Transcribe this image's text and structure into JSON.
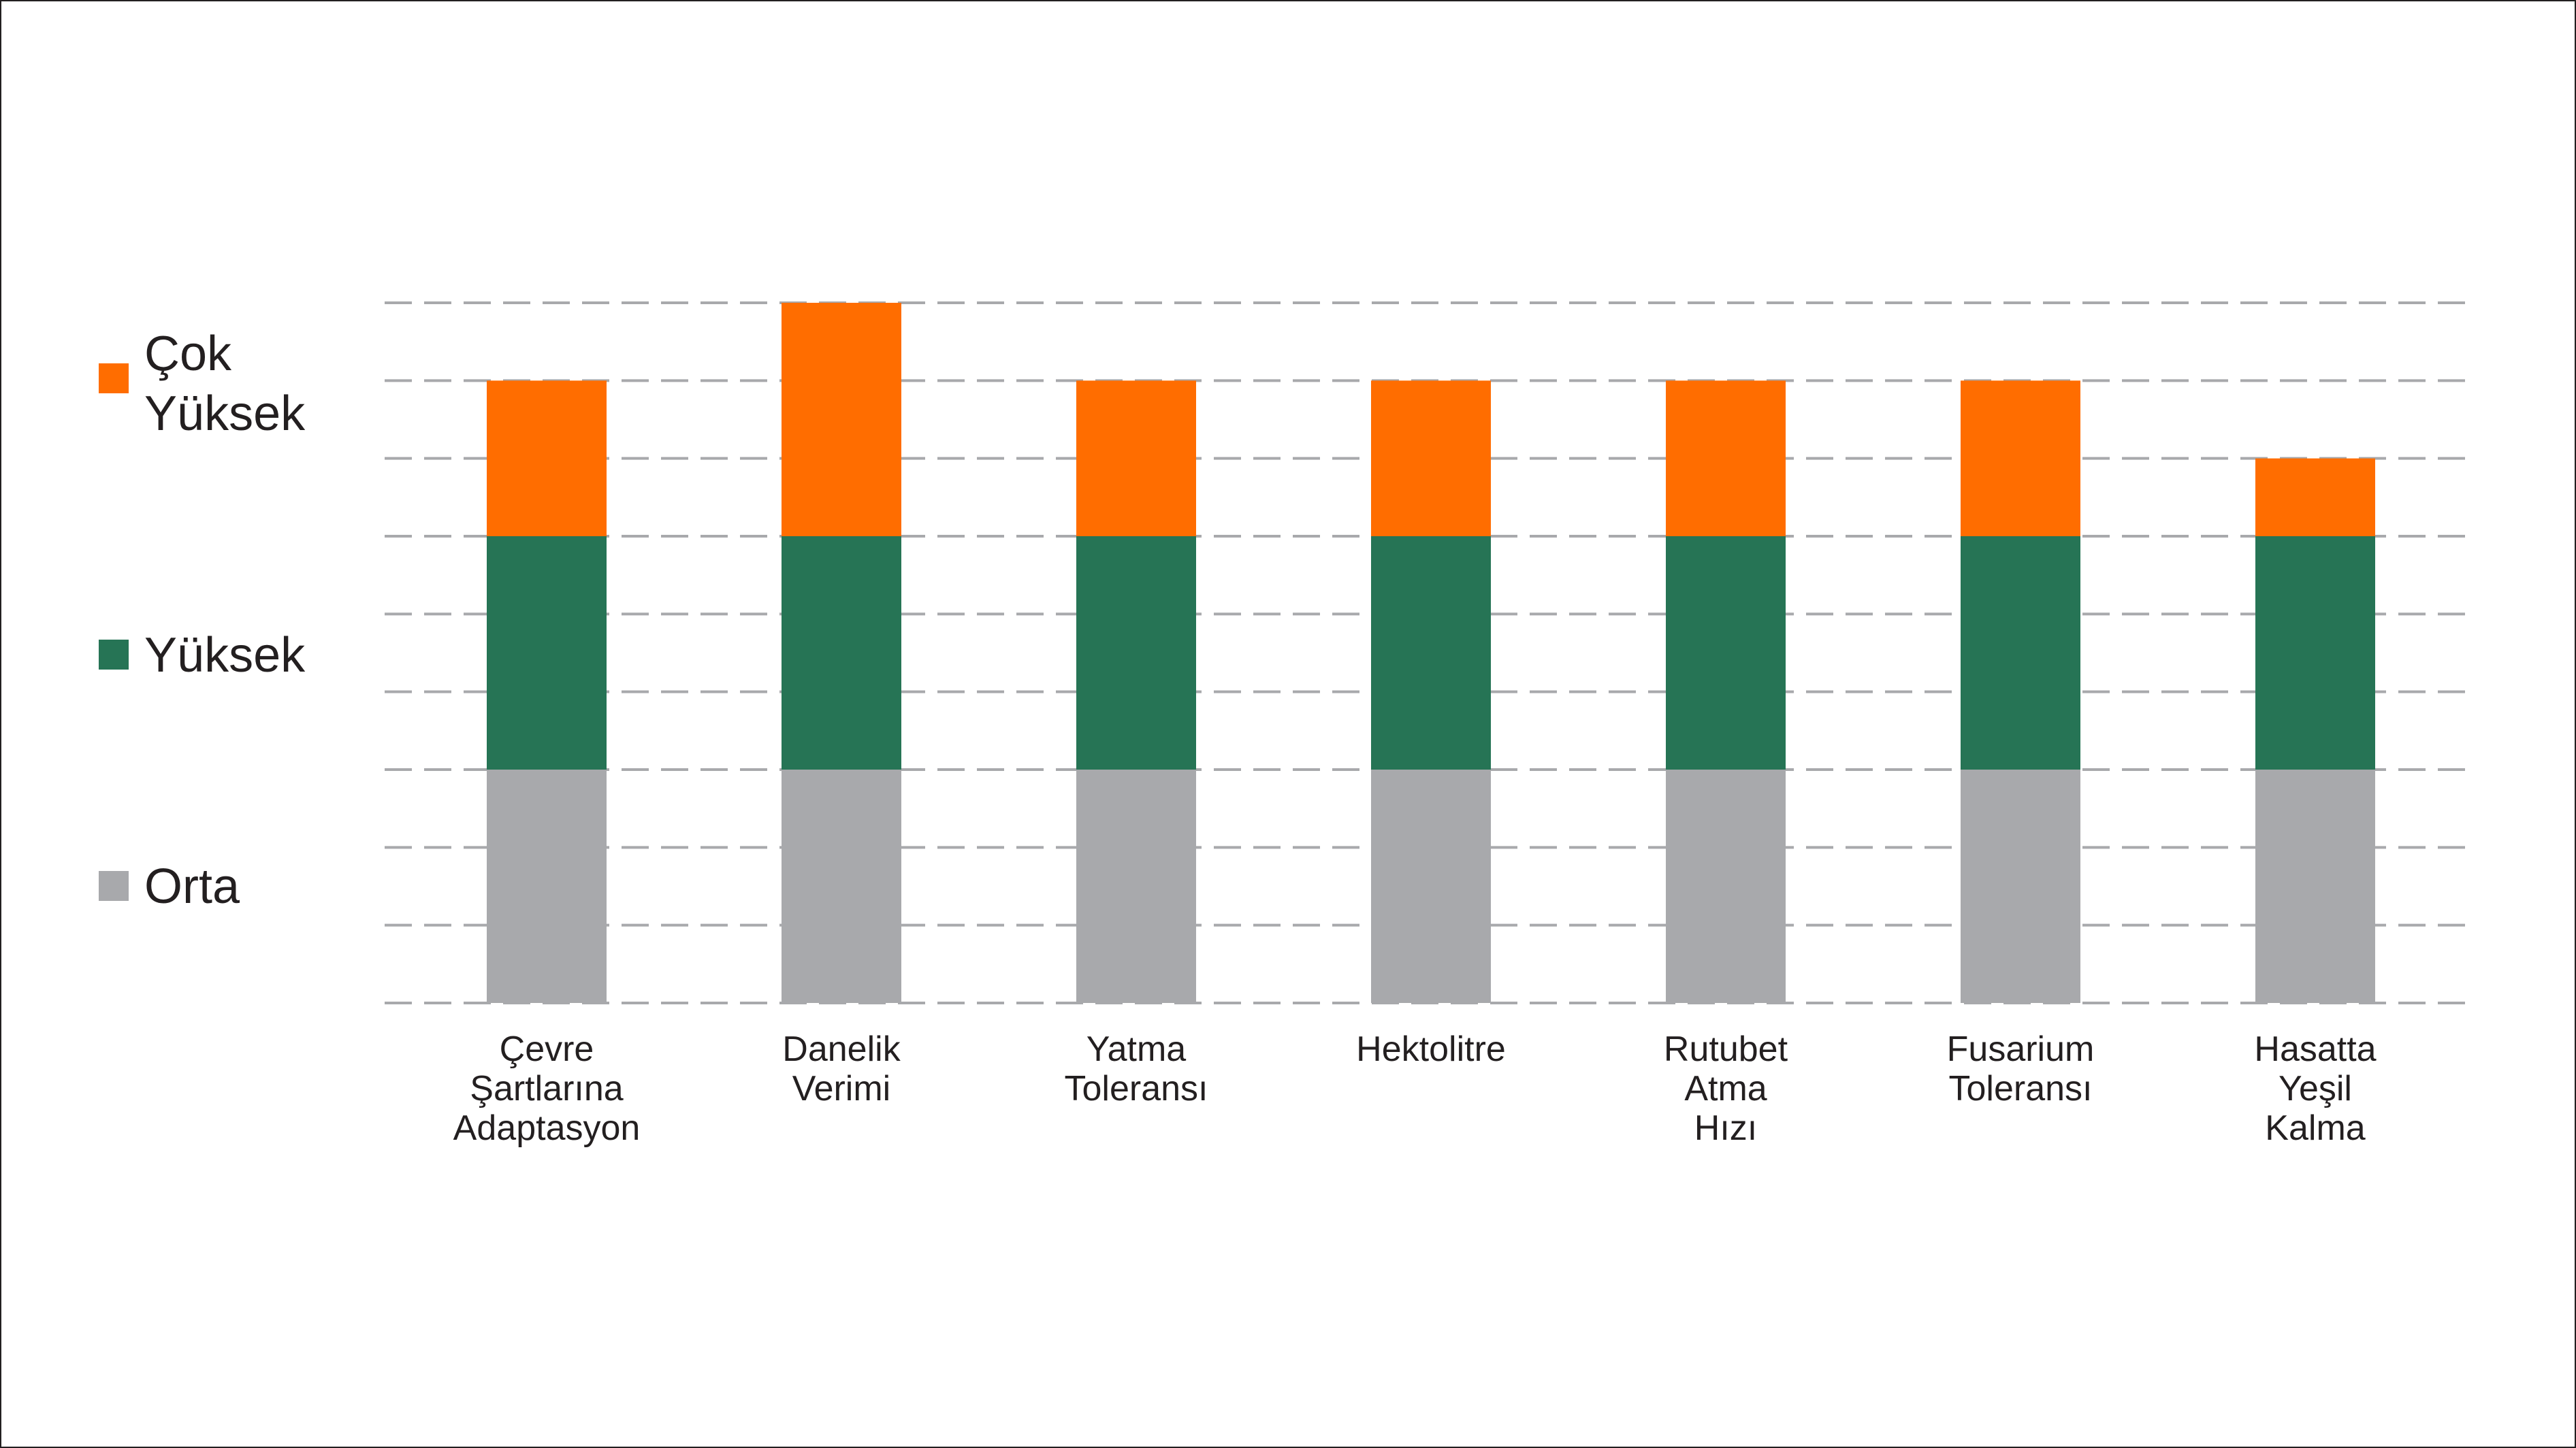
{
  "chart_data": {
    "type": "bar",
    "stacked": true,
    "categories": [
      [
        "Çevre",
        "Şartlarına",
        "Adaptasyon"
      ],
      [
        "Danelik",
        "Verimi"
      ],
      [
        "Yatma",
        "Toleransı"
      ],
      [
        "Hektolitre"
      ],
      [
        "Rutubet",
        "Atma",
        "Hızı"
      ],
      [
        "Fusarium",
        "Toleransı"
      ],
      [
        "Hasatta",
        "Yeşil",
        "Kalma"
      ]
    ],
    "series": [
      {
        "name": "Orta",
        "color": "#a8a9ac",
        "values": [
          3,
          3,
          3,
          3,
          3,
          3,
          3
        ]
      },
      {
        "name": "Yüksek",
        "color": "#267455",
        "values": [
          3,
          3,
          3,
          3,
          3,
          3,
          3
        ]
      },
      {
        "name": "Çok Yüksek",
        "color": "#ff6d00",
        "values": [
          2,
          3,
          2,
          2,
          2,
          2,
          1
        ]
      }
    ],
    "legend": {
      "placement": "left",
      "items": [
        {
          "lines": [
            "Çok",
            "Yüksek"
          ],
          "color": "#ff6d00"
        },
        {
          "lines": [
            "Yüksek"
          ],
          "color": "#267455"
        },
        {
          "lines": [
            "Orta"
          ],
          "color": "#a8a9ac"
        }
      ]
    },
    "ylim": [
      0,
      9
    ],
    "grid": true,
    "grid_style": "dashed",
    "grid_color": "#a8a9ac"
  }
}
